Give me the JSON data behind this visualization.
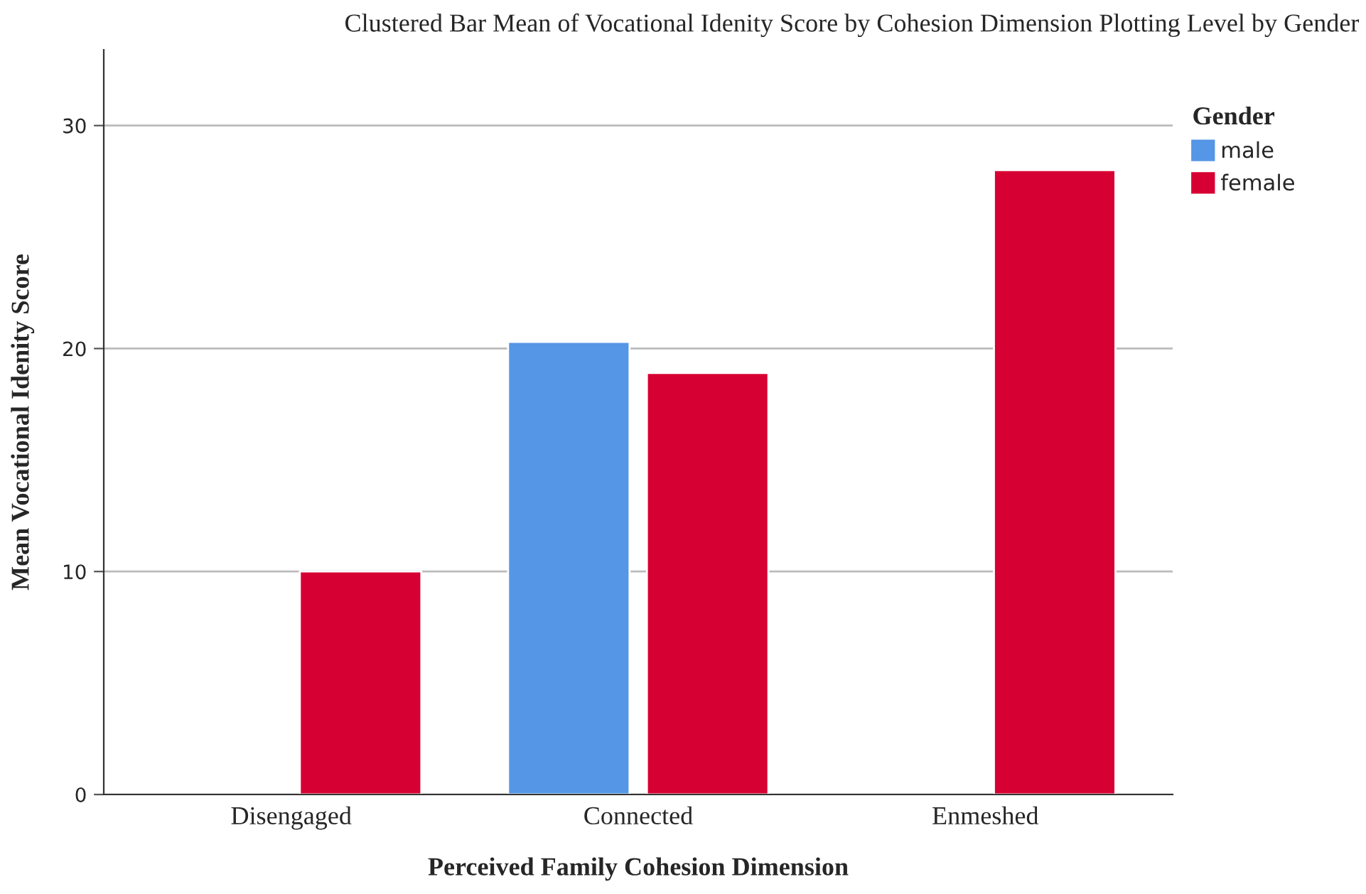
{
  "chart_data": {
    "type": "bar",
    "title": "Clustered Bar Mean of Vocational Idenity Score by Cohesion Dimension Plotting Level by Gender",
    "xlabel": "Perceived Family Cohesion Dimension",
    "ylabel": "Mean Vocational Idenity Score",
    "legend_title": "Gender",
    "categories": [
      "Disengaged",
      "Connected",
      "Enmeshed"
    ],
    "series": [
      {
        "name": "male",
        "color": "#5596e6",
        "values": [
          null,
          20.3,
          null
        ]
      },
      {
        "name": "female",
        "color": "#d70033",
        "values": [
          10.0,
          18.9,
          28.0
        ]
      }
    ],
    "ylim": [
      0,
      33.4
    ],
    "yticks": [
      0,
      10,
      20,
      30
    ],
    "grid": "y",
    "legend": "top right"
  }
}
